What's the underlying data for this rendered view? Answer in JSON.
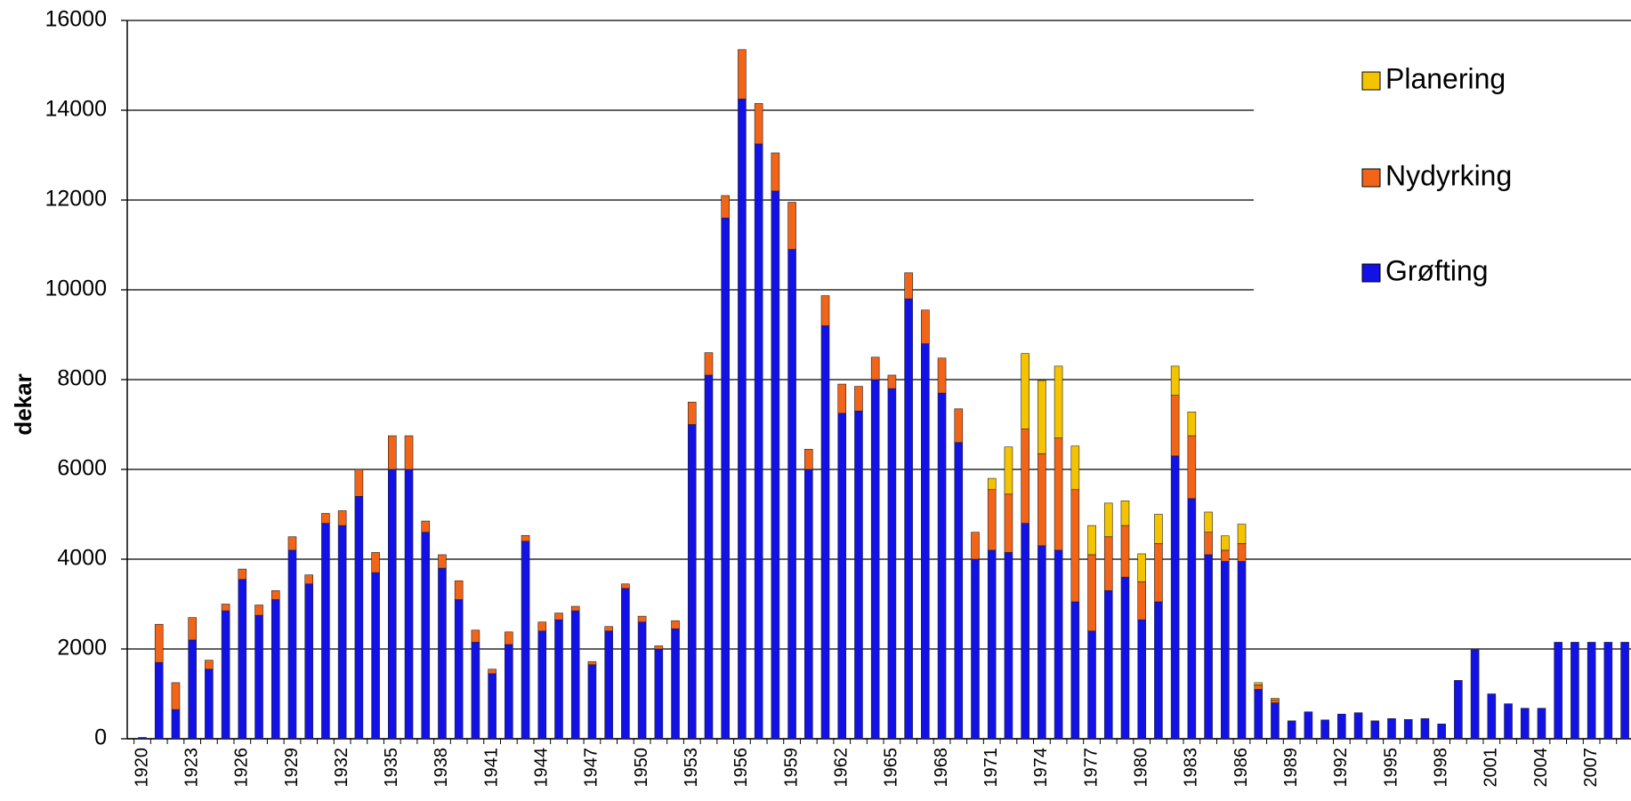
{
  "chart_data": {
    "type": "stacked_bar",
    "y_label": "dekar",
    "categories": [
      "1920",
      null,
      null,
      "1923",
      null,
      null,
      "1926",
      null,
      null,
      "1929",
      null,
      null,
      "1932",
      null,
      null,
      "1935",
      null,
      null,
      "1938",
      null,
      null,
      "1941",
      null,
      null,
      "1944",
      null,
      null,
      "1947",
      null,
      null,
      "1950",
      null,
      null,
      "1953",
      null,
      null,
      "1956",
      null,
      null,
      "1959",
      null,
      null,
      "1962",
      null,
      null,
      "1965",
      null,
      null,
      "1968",
      null,
      null,
      "1971",
      null,
      null,
      "1974",
      null,
      null,
      "1977",
      null,
      null,
      "1980",
      null,
      null,
      "1983",
      null,
      null,
      "1986",
      null,
      null,
      "1989",
      null,
      null,
      "1992",
      null,
      null,
      "1995",
      null,
      null,
      "1998",
      null,
      null,
      "2001",
      null,
      null,
      "2004",
      null,
      null,
      "2007",
      null,
      null
    ],
    "series": [
      {
        "name": "Grøfting",
        "color": "#1212e6",
        "values": [
          30,
          1700,
          650,
          2200,
          1550,
          2850,
          3550,
          2750,
          3100,
          4200,
          3450,
          4800,
          4750,
          5400,
          3700,
          6000,
          6000,
          4600,
          3800,
          3100,
          2150,
          1450,
          2100,
          4400,
          2400,
          2650,
          2850,
          1650,
          2400,
          3350,
          2600,
          2000,
          2450,
          7000,
          8100,
          11600,
          14250,
          13250,
          12200,
          10900,
          6000,
          9200,
          7250,
          7300,
          8000,
          7800,
          9800,
          8800,
          7700,
          6600,
          4000,
          4200,
          4150,
          4800,
          4300,
          4200,
          3050,
          2400,
          3300,
          3600,
          2650,
          3050,
          6300,
          5350,
          4100,
          3950,
          3950,
          1100,
          800,
          400,
          600,
          420,
          550,
          580,
          400,
          450,
          430,
          450,
          330,
          1300,
          1980,
          1000,
          780,
          680,
          680,
          2150,
          2150,
          2150,
          2150,
          2150
        ]
      },
      {
        "name": "Nydyrking",
        "color": "#f26418",
        "values": [
          0,
          850,
          600,
          500,
          200,
          150,
          230,
          230,
          200,
          300,
          200,
          220,
          330,
          600,
          450,
          750,
          750,
          250,
          300,
          420,
          270,
          100,
          280,
          130,
          200,
          150,
          100,
          70,
          100,
          100,
          130,
          70,
          180,
          500,
          500,
          500,
          1100,
          900,
          850,
          1050,
          450,
          670,
          650,
          550,
          500,
          300,
          580,
          750,
          780,
          750,
          600,
          1350,
          1300,
          2100,
          2050,
          2500,
          2500,
          1700,
          1200,
          1150,
          850,
          1300,
          1350,
          1400,
          500,
          250,
          400,
          100,
          70,
          0,
          0,
          0,
          0,
          0,
          0,
          0,
          0,
          0,
          0,
          0,
          0,
          0,
          0,
          0,
          0,
          0,
          0,
          0,
          0,
          0
        ]
      },
      {
        "name": "Planering",
        "color": "#f5c400",
        "values": [
          0,
          0,
          0,
          0,
          0,
          0,
          0,
          0,
          0,
          0,
          0,
          0,
          0,
          0,
          0,
          0,
          0,
          0,
          0,
          0,
          0,
          0,
          0,
          0,
          0,
          0,
          0,
          0,
          0,
          0,
          0,
          0,
          0,
          0,
          0,
          0,
          0,
          0,
          0,
          0,
          0,
          0,
          0,
          0,
          0,
          0,
          0,
          0,
          0,
          0,
          0,
          250,
          1050,
          1680,
          1630,
          1600,
          970,
          650,
          750,
          550,
          620,
          650,
          650,
          530,
          450,
          320,
          430,
          50,
          30,
          0,
          0,
          0,
          0,
          0,
          0,
          0,
          0,
          0,
          0,
          0,
          0,
          0,
          0,
          0,
          0,
          0,
          0,
          0,
          0,
          0
        ]
      }
    ],
    "ylim": [
      0,
      16000
    ],
    "yticks": [
      0,
      2000,
      4000,
      6000,
      8000,
      10000,
      12000,
      14000,
      16000
    ],
    "grid": true,
    "legend": "upper right"
  }
}
